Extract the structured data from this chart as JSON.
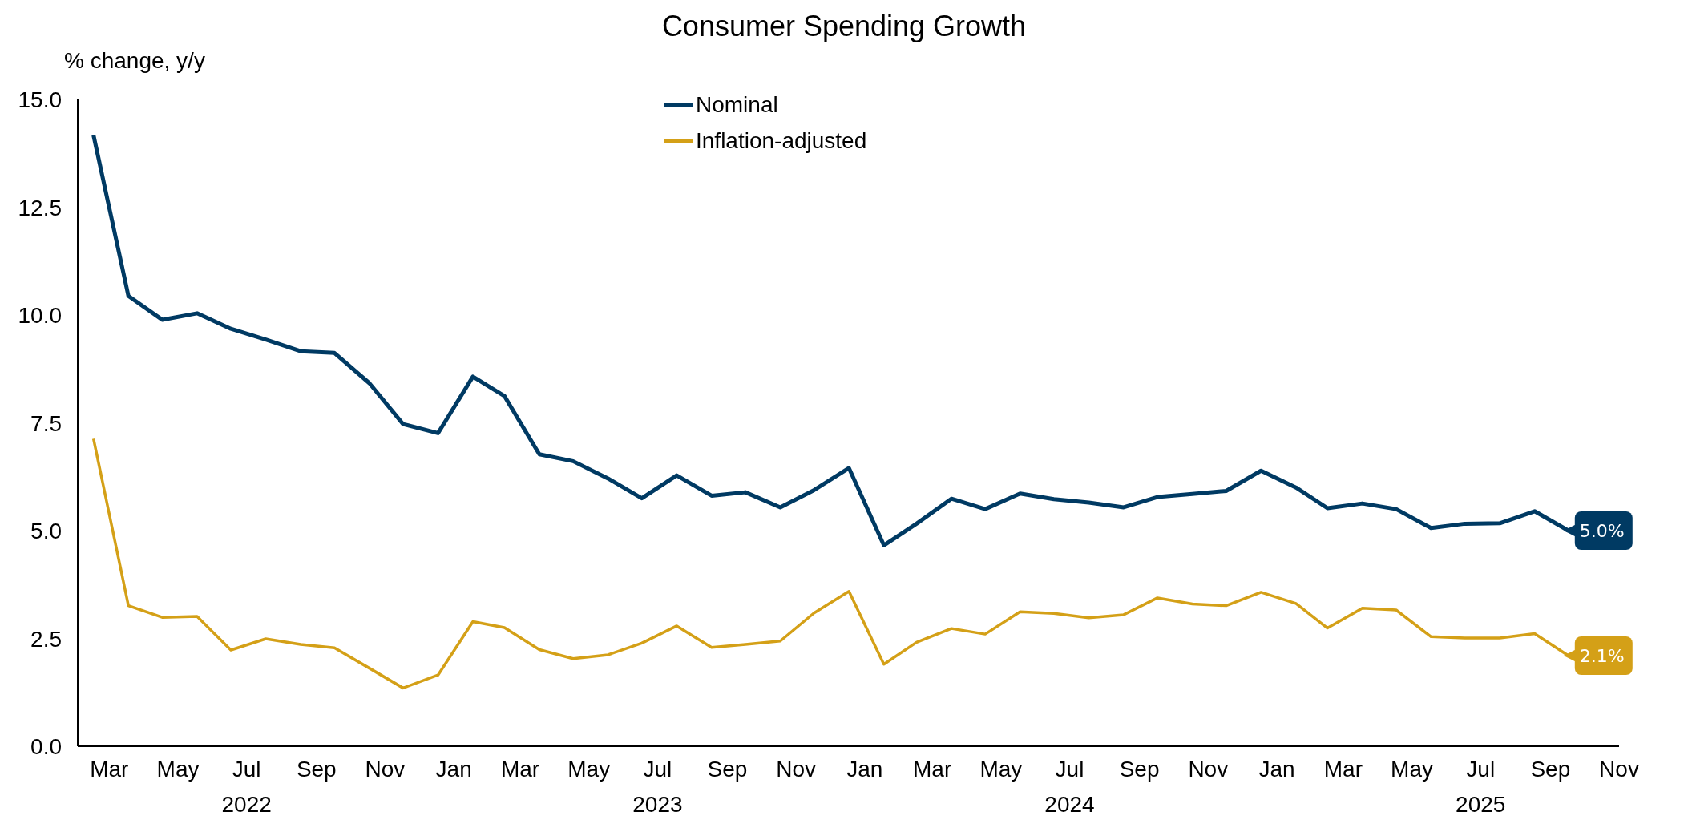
{
  "chart_data": {
    "type": "line",
    "title": "Consumer Spending Growth",
    "ylabel": "% change, y/y",
    "x": [
      "2022-03-01",
      "2022-04-01",
      "2022-05-01",
      "2022-06-01",
      "2022-07-01",
      "2022-08-01",
      "2022-09-01",
      "2022-10-01",
      "2022-11-01",
      "2022-12-01",
      "2023-01-01",
      "2023-02-01",
      "2023-03-01",
      "2023-04-01",
      "2023-05-01",
      "2023-06-01",
      "2023-07-01",
      "2023-08-01",
      "2023-09-01",
      "2023-10-01",
      "2023-11-01",
      "2023-12-01",
      "2024-01-01",
      "2024-02-01",
      "2024-03-01",
      "2024-04-01",
      "2024-05-01",
      "2024-06-01",
      "2024-07-01",
      "2024-08-01",
      "2024-09-01",
      "2024-10-01",
      "2024-11-01",
      "2024-12-01",
      "2025-01-01",
      "2025-02-01",
      "2025-03-01",
      "2025-04-01",
      "2025-05-01",
      "2025-06-01",
      "2025-07-01",
      "2025-08-01",
      "2025-09-01",
      "2025-10-01"
    ],
    "series": [
      {
        "name": "Nominal",
        "color": "#003a63",
        "values": [
          14.17,
          10.44,
          9.89,
          10.04,
          9.68,
          9.43,
          9.16,
          9.12,
          8.42,
          7.47,
          7.26,
          8.57,
          8.12,
          6.77,
          6.61,
          6.21,
          5.75,
          6.28,
          5.81,
          5.89,
          5.54,
          5.94,
          6.45,
          4.66,
          5.16,
          5.74,
          5.5,
          5.86,
          5.73,
          5.65,
          5.54,
          5.78,
          5.85,
          5.92,
          6.39,
          6.0,
          5.52,
          5.63,
          5.5,
          5.06,
          5.16,
          5.17,
          5.45,
          5.0
        ],
        "value_labels": [
          null,
          null,
          null,
          null,
          null,
          null,
          null,
          null,
          null,
          null,
          null,
          null,
          null,
          null,
          null,
          null,
          null,
          null,
          null,
          null,
          null,
          null,
          null,
          null,
          null,
          null,
          null,
          null,
          null,
          null,
          null,
          null,
          null,
          null,
          null,
          null,
          null,
          null,
          null,
          null,
          null,
          null,
          null,
          "5.0%"
        ]
      },
      {
        "name": "Inflation-adjusted",
        "color": "#d4a017",
        "values": [
          7.13,
          3.26,
          2.99,
          3.01,
          2.23,
          2.49,
          2.36,
          2.28,
          1.81,
          1.35,
          1.65,
          2.89,
          2.75,
          2.24,
          2.03,
          2.12,
          2.39,
          2.79,
          2.29,
          2.36,
          2.44,
          3.09,
          3.59,
          1.9,
          2.41,
          2.73,
          2.6,
          3.12,
          3.08,
          2.98,
          3.05,
          3.44,
          3.3,
          3.26,
          3.57,
          3.31,
          2.74,
          3.2,
          3.16,
          2.54,
          2.51,
          2.51,
          2.61,
          2.1
        ],
        "value_labels": [
          null,
          null,
          null,
          null,
          null,
          null,
          null,
          null,
          null,
          null,
          null,
          null,
          null,
          null,
          null,
          null,
          null,
          null,
          null,
          null,
          null,
          null,
          null,
          null,
          null,
          null,
          null,
          null,
          null,
          null,
          null,
          null,
          null,
          null,
          null,
          null,
          null,
          null,
          null,
          null,
          null,
          null,
          null,
          "2.1%"
        ]
      }
    ],
    "xlim": [
      "2022-02-15",
      "2025-11-15"
    ],
    "xticks": [
      {
        "value": "2022-03-15",
        "label": "Mar"
      },
      {
        "value": "2022-05-15",
        "label": "May"
      },
      {
        "value": "2022-07-15",
        "label": "Jul 2022"
      },
      {
        "value": "2022-09-15",
        "label": "Sep"
      },
      {
        "value": "2022-11-15",
        "label": "Nov"
      },
      {
        "value": "2023-01-15",
        "label": "Jan"
      },
      {
        "value": "2023-03-15",
        "label": "Mar"
      },
      {
        "value": "2023-05-15",
        "label": "May"
      },
      {
        "value": "2023-07-15",
        "label": "Jul 2023"
      },
      {
        "value": "2023-09-15",
        "label": "Sep"
      },
      {
        "value": "2023-11-15",
        "label": "Nov"
      },
      {
        "value": "2024-01-15",
        "label": "Jan"
      },
      {
        "value": "2024-03-15",
        "label": "Mar"
      },
      {
        "value": "2024-05-15",
        "label": "May"
      },
      {
        "value": "2024-07-15",
        "label": "Jul 2024"
      },
      {
        "value": "2024-09-15",
        "label": "Sep"
      },
      {
        "value": "2024-11-15",
        "label": "Nov"
      },
      {
        "value": "2025-01-15",
        "label": "Jan"
      },
      {
        "value": "2025-03-15",
        "label": "Mar"
      },
      {
        "value": "2025-05-15",
        "label": "May"
      },
      {
        "value": "2025-07-15",
        "label": "Jul 2025"
      },
      {
        "value": "2025-09-15",
        "label": "Sep"
      },
      {
        "value": "2025-11-15",
        "label": "Nov"
      }
    ],
    "ylim": [
      0,
      15
    ],
    "yticks": [
      {
        "value": 0,
        "label": "0.0"
      },
      {
        "value": 2.5,
        "label": "2.5"
      },
      {
        "value": 5,
        "label": "5.0"
      },
      {
        "value": 7.5,
        "label": "7.5"
      },
      {
        "value": 10,
        "label": "10.0"
      },
      {
        "value": 12.5,
        "label": "12.5"
      },
      {
        "value": 15,
        "label": "15.0"
      }
    ],
    "grid": false,
    "legend": "top",
    "marker": "none",
    "line_style": "solid"
  }
}
